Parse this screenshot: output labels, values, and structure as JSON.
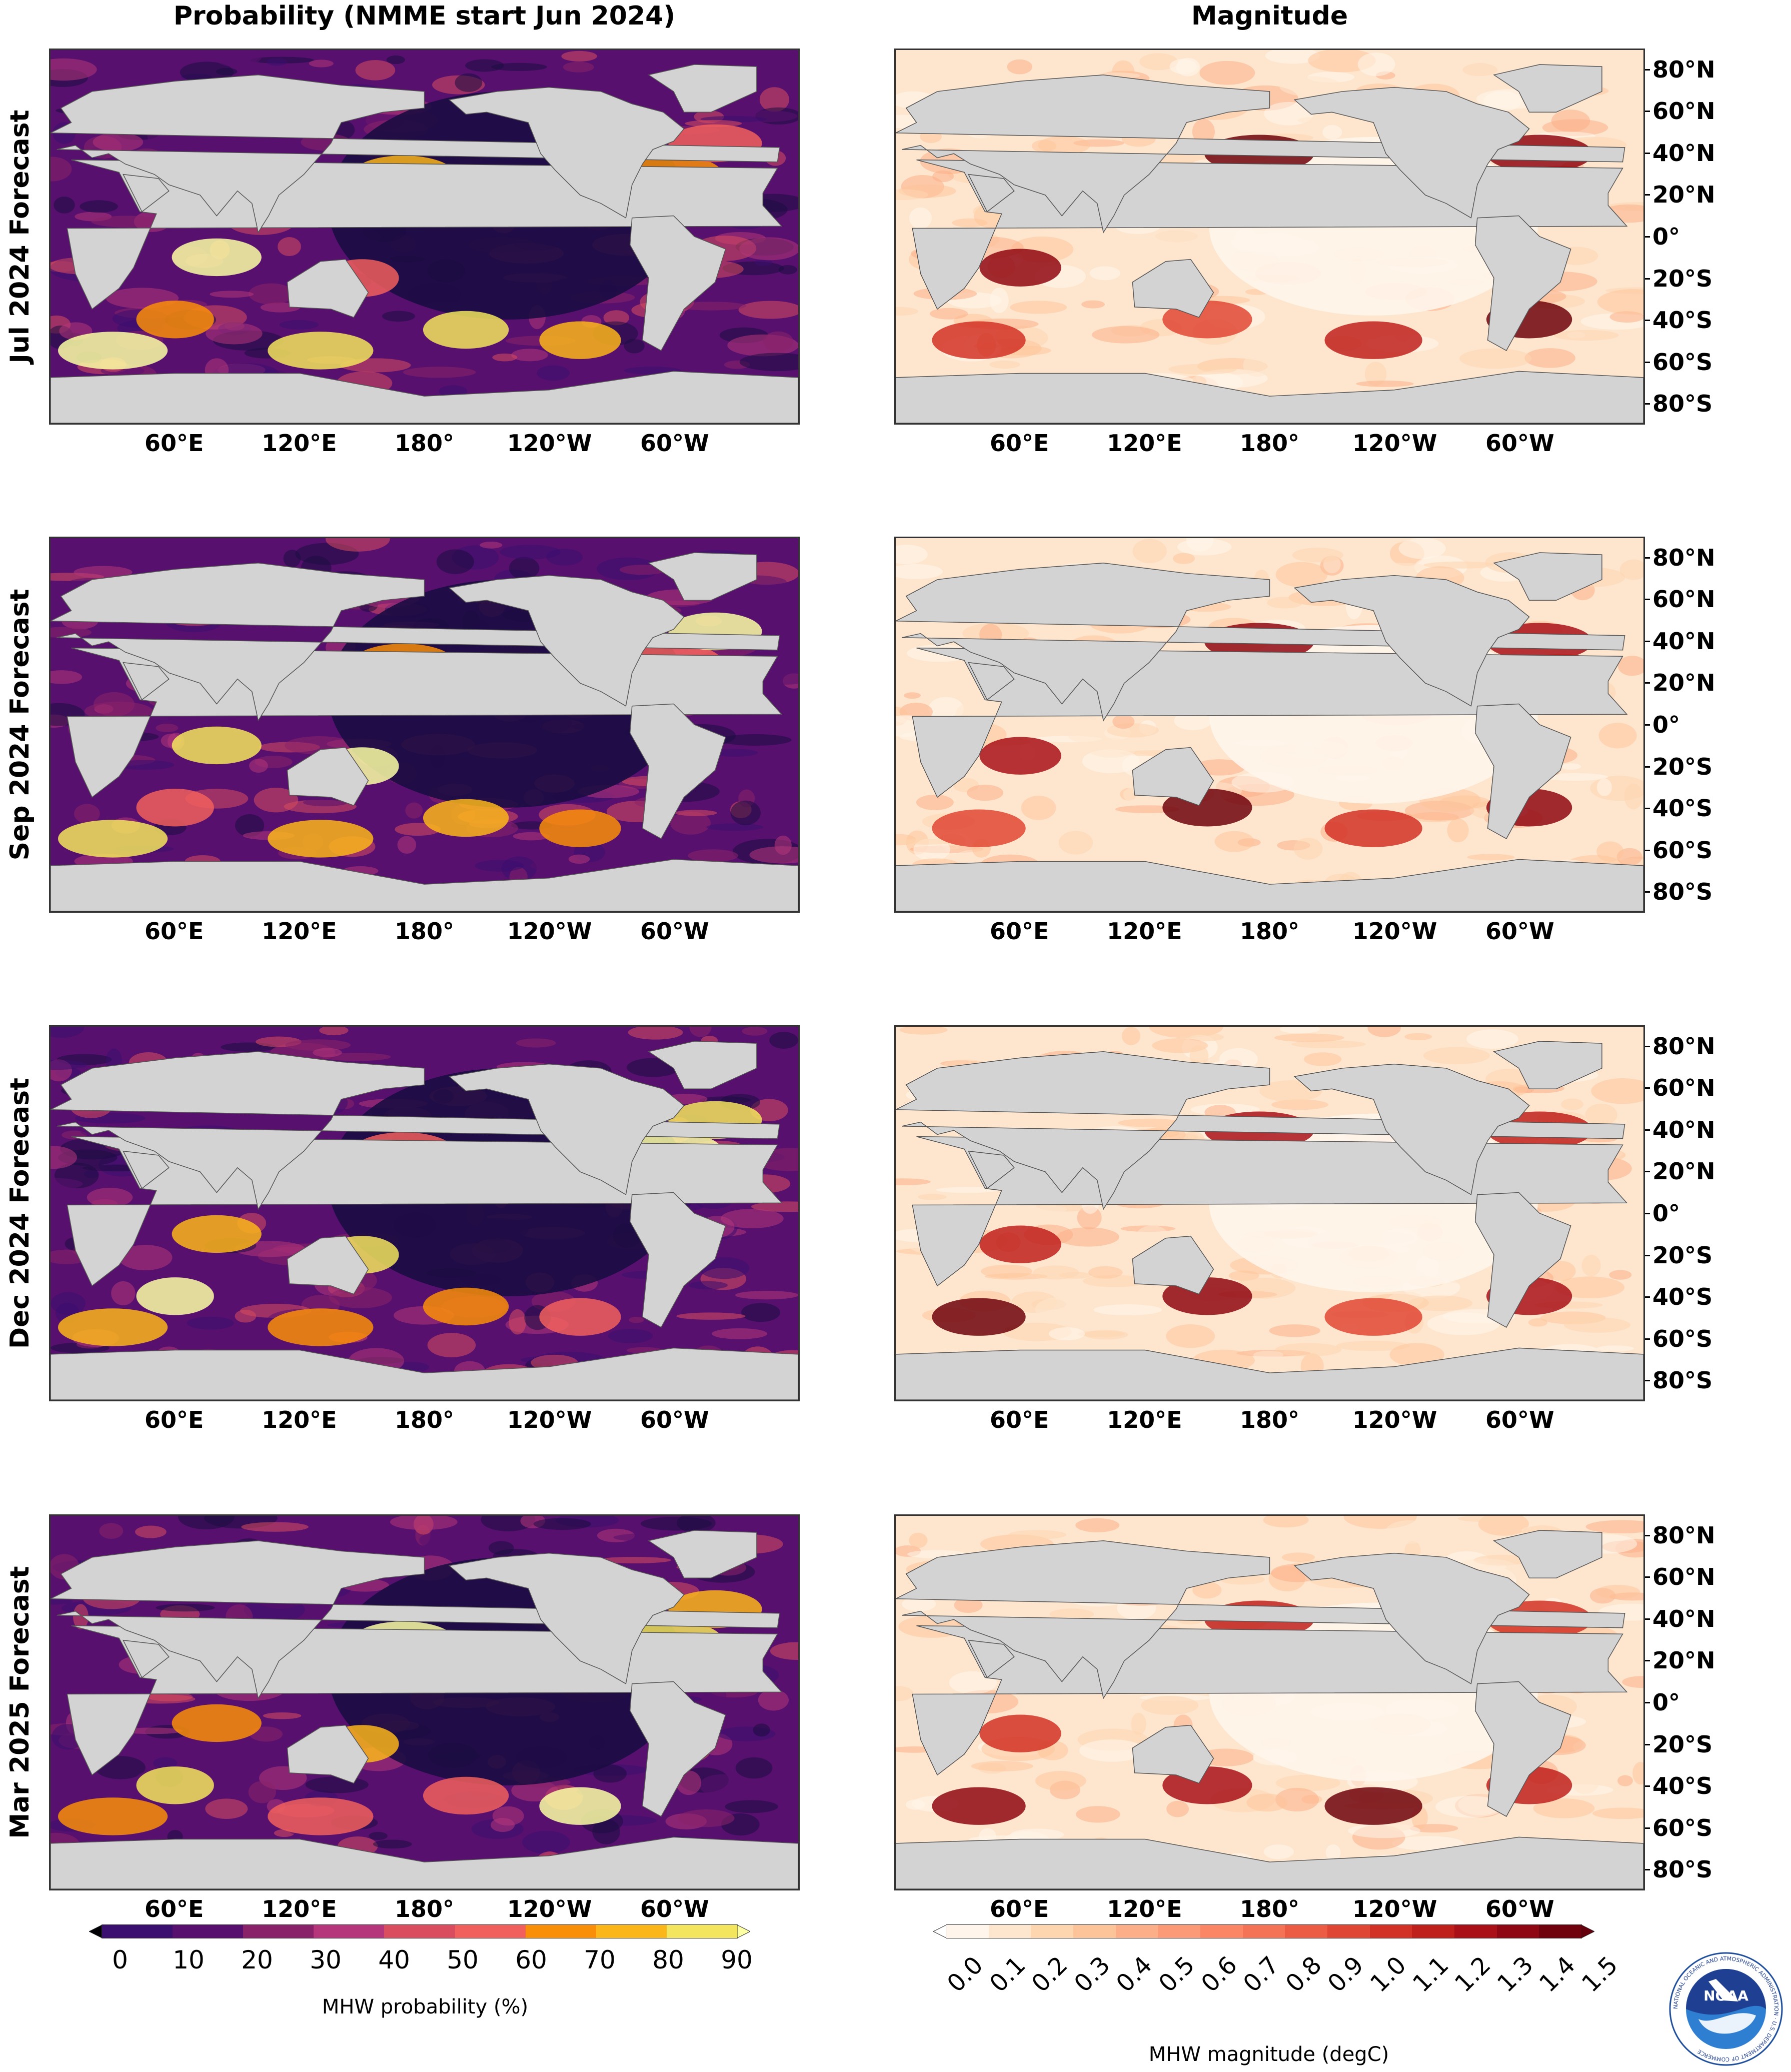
{
  "titles": {
    "left": "Probability (NMME start Jun 2024)",
    "right": "Magnitude"
  },
  "rows": [
    {
      "label": "Jul 2024 Forecast"
    },
    {
      "label": "Sep 2024 Forecast"
    },
    {
      "label": "Dec 2024 Forecast"
    },
    {
      "label": "Mar 2025 Forecast"
    }
  ],
  "lon_ticks": [
    "60°E",
    "120°E",
    "180°",
    "120°W",
    "60°W"
  ],
  "lat_ticks": [
    "80°N",
    "60°N",
    "40°N",
    "20°N",
    "0°",
    "20°S",
    "40°S",
    "60°S",
    "80°S"
  ],
  "probability_colorbar": {
    "label": "MHW probability (%)",
    "ticks": [
      "0",
      "10",
      "20",
      "30",
      "40",
      "50",
      "60",
      "70",
      "80",
      "90"
    ],
    "colors": [
      "#1b0c41",
      "#3b0f70",
      "#57106e",
      "#8a226a",
      "#b5367a",
      "#d94d5e",
      "#f1605d",
      "#f98e09",
      "#fbb61a",
      "#f3e55d",
      "#fcffa4"
    ]
  },
  "magnitude_colorbar": {
    "label": "MHW magnitude (degC)",
    "ticks": [
      "0.0",
      "0.1",
      "0.2",
      "0.3",
      "0.4",
      "0.5",
      "0.6",
      "0.7",
      "0.8",
      "0.9",
      "1.0",
      "1.1",
      "1.2",
      "1.3",
      "1.4",
      "1.5"
    ],
    "colors": [
      "#fff5eb",
      "#fee6ce",
      "#fdd6b0",
      "#fdc49a",
      "#fcae89",
      "#fc9a78",
      "#fb8666",
      "#f47256",
      "#ec5c44",
      "#e04634",
      "#d23125",
      "#c0201c",
      "#a91017",
      "#8f0712",
      "#6f020c"
    ]
  },
  "colors": {
    "land": "#d3d3d3",
    "ocean_low_probability": "#1b0c41",
    "ocean_low_magnitude": "#fff5eb"
  },
  "logo": {
    "text": "NOAA",
    "ring_text": "NATIONAL OCEANIC AND ATMOSPHERIC ADMINISTRATION · U.S. DEPARTMENT OF COMMERCE"
  }
}
